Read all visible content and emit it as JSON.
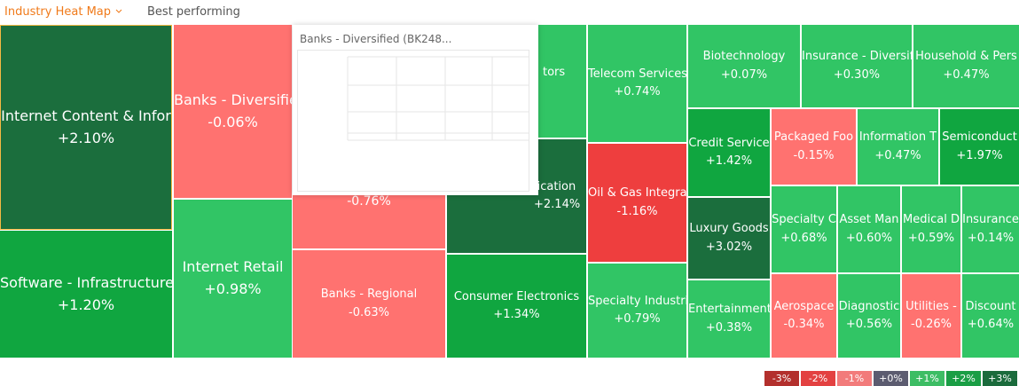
{
  "tabs": [
    {
      "label": "Industry Heat Map"
    },
    {
      "label": "Best performing"
    }
  ],
  "tiles": [
    {
      "name": "Internet Content & Infor",
      "change": "+2.10%",
      "color": "#1b6e3d"
    },
    {
      "name": "Software - Infrastructure",
      "change": "+1.20%",
      "color": "#10a640"
    },
    {
      "name": "Banks - Diversifie",
      "change": "-0.06%",
      "color": "#ff7270"
    },
    {
      "name": "Internet Retail",
      "change": "+0.98%",
      "color": "#31c565"
    },
    {
      "change": "-0.76%",
      "color": "#ff7270"
    },
    {
      "name": "Banks - Regional",
      "change": "-0.63%",
      "color": "#ff7270"
    },
    {
      "name": "lication",
      "change": "+2.14%",
      "color": "#1b6e3d"
    },
    {
      "name": "tors",
      "color": "#31c565"
    },
    {
      "name": "Consumer Electronics",
      "change": "+1.34%",
      "color": "#10a640"
    },
    {
      "name": "Telecom Services",
      "change": "+0.74%",
      "color": "#31c565"
    },
    {
      "name": "Oil & Gas Integra",
      "change": "-1.16%",
      "color": "#ee3e3e"
    },
    {
      "name": "Specialty Industri",
      "change": "+0.79%",
      "color": "#31c565"
    },
    {
      "name": "Biotechnology",
      "change": "+0.07%",
      "color": "#31c565"
    },
    {
      "name": "Insurance - Diversif",
      "change": "+0.30%",
      "color": "#31c565"
    },
    {
      "name": "Household & Pers",
      "change": "+0.47%",
      "color": "#31c565"
    },
    {
      "name": "Credit Service",
      "change": "+1.42%",
      "color": "#10a640"
    },
    {
      "name": "Luxury Goods",
      "change": "+3.02%",
      "color": "#1b6e3d"
    },
    {
      "name": "Entertainment",
      "change": "+0.38%",
      "color": "#31c565"
    },
    {
      "name": "Packaged Foo",
      "change": "-0.15%",
      "color": "#ff7270"
    },
    {
      "name": "Information T",
      "change": "+0.47%",
      "color": "#31c565"
    },
    {
      "name": "Semiconduct",
      "change": "+1.97%",
      "color": "#10a640"
    },
    {
      "name": "Specialty C",
      "change": "+0.68%",
      "color": "#31c565"
    },
    {
      "name": "Asset Man",
      "change": "+0.60%",
      "color": "#31c565"
    },
    {
      "name": "Medical D",
      "change": "+0.59%",
      "color": "#31c565"
    },
    {
      "name": "Insurance",
      "change": "+0.14%",
      "color": "#31c565"
    },
    {
      "name": "Aerospace",
      "change": "-0.34%",
      "color": "#ff7270"
    },
    {
      "name": "Diagnostic",
      "change": "+0.56%",
      "color": "#31c565"
    },
    {
      "name": "Utilities -",
      "change": "-0.26%",
      "color": "#ff7270"
    },
    {
      "name": "Discount",
      "change": "+0.64%",
      "color": "#31c565"
    }
  ],
  "tooltip": {
    "title": "Banks - Diversified  (BK248..."
  },
  "legend": [
    {
      "label": "-3%",
      "color": "#b3302d"
    },
    {
      "label": "-2%",
      "color": "#e34141"
    },
    {
      "label": "-1%",
      "color": "#f27b7b"
    },
    {
      "label": "+0%",
      "color": "#5c5c70"
    },
    {
      "label": "+1%",
      "color": "#3dbd64"
    },
    {
      "label": "+2%",
      "color": "#1a9e45"
    },
    {
      "label": "+3%",
      "color": "#1b6b3c"
    }
  ]
}
